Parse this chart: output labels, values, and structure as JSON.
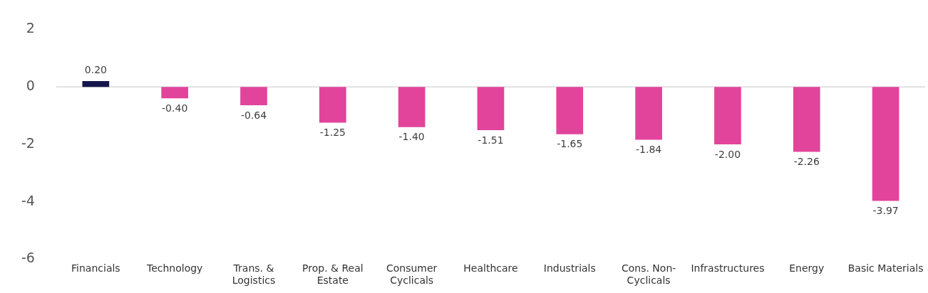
{
  "chart_data": {
    "type": "bar",
    "categories": [
      "Financials",
      "Technology",
      "Trans. & Logistics",
      "Prop. & Real Estate",
      "Consumer Cyclicals",
      "Healthcare",
      "Industrials",
      "Cons. Non-Cyclicals",
      "Infrastructures",
      "Energy",
      "Basic Materials"
    ],
    "values": [
      0.2,
      -0.4,
      -0.64,
      -1.25,
      -1.4,
      -1.51,
      -1.65,
      -1.84,
      -2.0,
      -2.26,
      -3.97
    ],
    "colors": [
      "#15154d",
      "#e2449b",
      "#e2449b",
      "#e2449b",
      "#e2449b",
      "#e2449b",
      "#e2449b",
      "#e2449b",
      "#e2449b",
      "#e2449b",
      "#e2449b"
    ],
    "value_labels": [
      "0.20",
      "-0.40",
      "-0.64",
      "-1.25",
      "-1.40",
      "-1.51",
      "-1.65",
      "-1.84",
      "-2.00",
      "-2.26",
      "-3.97"
    ],
    "ylim": [
      -6,
      2
    ],
    "yticks": [
      -6,
      -4,
      -2,
      0,
      2
    ],
    "ref_lines": [
      {
        "axis": "y",
        "value": 0,
        "color": "#d9d9d9"
      }
    ],
    "grid": false,
    "legend": false
  }
}
